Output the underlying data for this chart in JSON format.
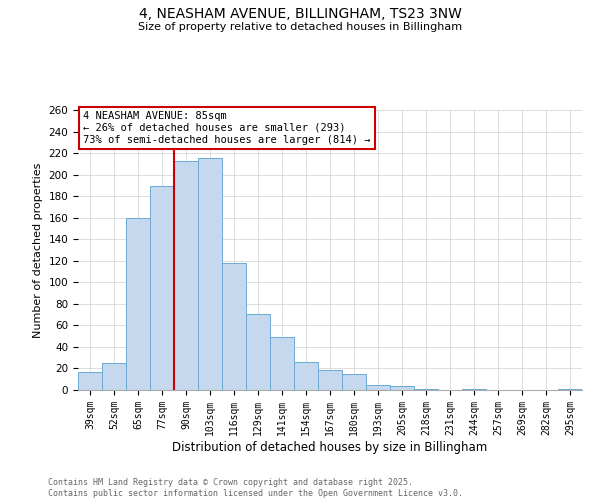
{
  "title": "4, NEASHAM AVENUE, BILLINGHAM, TS23 3NW",
  "subtitle": "Size of property relative to detached houses in Billingham",
  "xlabel": "Distribution of detached houses by size in Billingham",
  "ylabel": "Number of detached properties",
  "categories": [
    "39sqm",
    "52sqm",
    "65sqm",
    "77sqm",
    "90sqm",
    "103sqm",
    "116sqm",
    "129sqm",
    "141sqm",
    "154sqm",
    "167sqm",
    "180sqm",
    "193sqm",
    "205sqm",
    "218sqm",
    "231sqm",
    "244sqm",
    "257sqm",
    "269sqm",
    "282sqm",
    "295sqm"
  ],
  "values": [
    17,
    25,
    160,
    189,
    213,
    215,
    118,
    71,
    49,
    26,
    19,
    15,
    5,
    4,
    1,
    0,
    1,
    0,
    0,
    0,
    1
  ],
  "bar_color": "#c5d8ed",
  "bar_edge_color": "#6aaad4",
  "background_color": "#ffffff",
  "grid_color": "#d0d0d0",
  "ylim": [
    0,
    260
  ],
  "yticks": [
    0,
    20,
    40,
    60,
    80,
    100,
    120,
    140,
    160,
    180,
    200,
    220,
    240,
    260
  ],
  "property_label": "4 NEASHAM AVENUE: 85sqm",
  "annotation_line1": "← 26% of detached houses are smaller (293)",
  "annotation_line2": "73% of semi-detached houses are larger (814) →",
  "annotation_box_color": "#ffffff",
  "annotation_box_edge_color": "#cc0000",
  "red_line_color": "#cc0000",
  "footer_line1": "Contains HM Land Registry data © Crown copyright and database right 2025.",
  "footer_line2": "Contains public sector information licensed under the Open Government Licence v3.0.",
  "footer_color": "#666666"
}
